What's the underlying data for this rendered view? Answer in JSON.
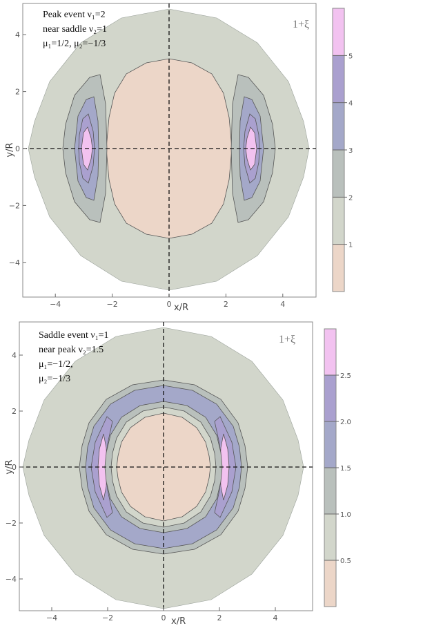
{
  "chart_data": [
    {
      "type": "contour",
      "xlabel": "x/R",
      "ylabel": "y/R",
      "xlim": [
        -5.1,
        5.1
      ],
      "ylim": [
        -5.1,
        5.1
      ],
      "xticks": [
        "−4",
        "−2",
        "0",
        "2",
        "4"
      ],
      "yticks": [
        "−4",
        "−2",
        "0",
        "2",
        "4"
      ],
      "annotation_lines": [
        "Peak event ν₁=2",
        "near saddle ν₂=1",
        "μ₁=1/2, μ₂=−1/3"
      ],
      "colorbar_title": "1+ξ",
      "colorbar_levels": [
        "1",
        "2",
        "3",
        "4",
        "5"
      ],
      "colorbar_range": [
        0,
        6
      ],
      "level_colors": [
        "#ecd6c8",
        "#d2d6cb",
        "#b9c0bc",
        "#a4a8c9",
        "#aaa0cf",
        "#f2c2f0"
      ],
      "reference_lines": "dashed lines along x=0 and y=0"
    },
    {
      "type": "contour",
      "xlabel": "x/R",
      "ylabel": "y/R",
      "xlim": [
        -5.1,
        5.1
      ],
      "ylim": [
        -5.1,
        5.1
      ],
      "xticks": [
        "−4",
        "−2",
        "0",
        "2",
        "4"
      ],
      "yticks": [
        "−4",
        "−2",
        "0",
        "2",
        "4"
      ],
      "annotation_lines": [
        "Saddle event ν₁=1",
        "near peak ν₂=1.5",
        "μ₁=−1/2,",
        "μ₂=−1/3"
      ],
      "colorbar_title": "1+ξ",
      "colorbar_levels": [
        "0.5",
        "1.0",
        "1.5",
        "2.0",
        "2.5"
      ],
      "colorbar_range": [
        0,
        3
      ],
      "level_colors": [
        "#ecd6c8",
        "#d2d6cb",
        "#b9c0bc",
        "#a4a8c9",
        "#aaa0cf",
        "#f2c2f0"
      ],
      "reference_lines": "dashed lines along x=0 and y=0"
    }
  ]
}
